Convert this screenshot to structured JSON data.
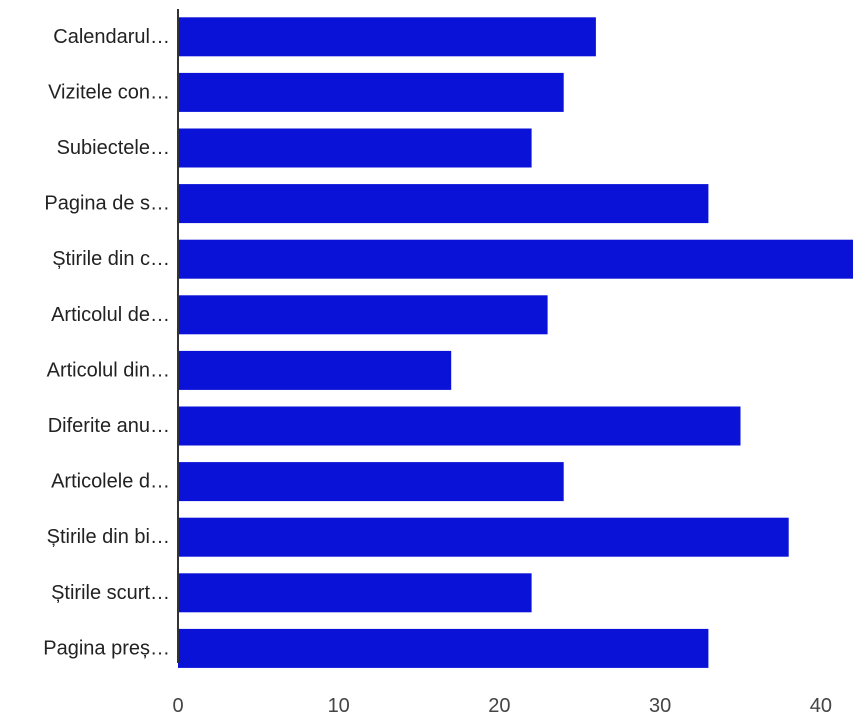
{
  "chart_data": {
    "type": "bar",
    "orientation": "horizontal",
    "title": "",
    "xlabel": "",
    "ylabel": "",
    "categories": [
      "Calendarul…",
      "Vizitele con…",
      "Subiectele…",
      "Pagina de s…",
      "Știrile din c…",
      "Articolul de…",
      "Articolul din…",
      "Diferite anu…",
      "Articolele d…",
      "Știrile din bi…",
      "Știrile scurt…",
      "Pagina preș…"
    ],
    "values": [
      26,
      24,
      22,
      33,
      42,
      23,
      17,
      35,
      24,
      38,
      22,
      33
    ],
    "xlim": [
      0,
      42
    ],
    "xticks": [
      0,
      10,
      20,
      30,
      40
    ],
    "grid": false,
    "legend": "none",
    "bar_color": "#0a12d8",
    "axis_color": "#333333"
  }
}
